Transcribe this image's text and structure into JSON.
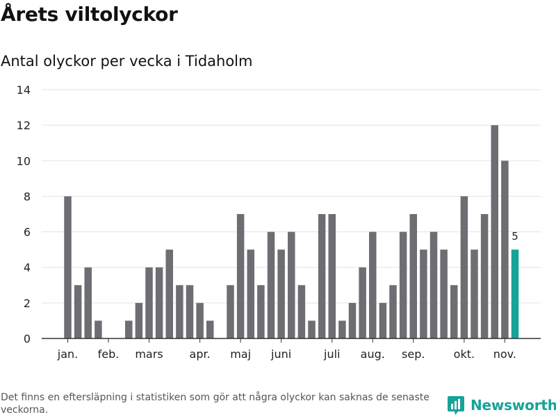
{
  "header": {
    "title": "Årets viltolyckor",
    "subtitle": "Antal olyckor per vecka i Tidaholm"
  },
  "footer": {
    "note": "Det finns en eftersläpning i statistiken som gör att några olyckor kan saknas de senaste veckorna.",
    "brand": "Newsworthy"
  },
  "colors": {
    "bar": "#6e6d73",
    "highlight": "#17a398",
    "grid": "#e3e3e3",
    "axis": "#333333",
    "brand": "#17a398"
  },
  "icons": {
    "logo": "newsworthy-bars-logo"
  },
  "chart_data": {
    "type": "bar",
    "ylim": [
      0,
      14
    ],
    "yticks": [
      0,
      2,
      4,
      6,
      8,
      10,
      12,
      14
    ],
    "grid": true,
    "values": [
      8,
      3,
      4,
      1,
      0,
      0,
      1,
      2,
      4,
      4,
      5,
      3,
      3,
      2,
      1,
      0,
      3,
      7,
      5,
      3,
      6,
      5,
      6,
      3,
      1,
      7,
      7,
      1,
      2,
      4,
      6,
      2,
      3,
      6,
      7,
      5,
      6,
      5,
      3,
      8,
      5,
      7,
      12,
      10,
      5
    ],
    "highlight_index": 44,
    "highlight_label": "5",
    "month_labels": [
      {
        "label": "jan.",
        "week": 1
      },
      {
        "label": "feb.",
        "week": 5
      },
      {
        "label": "mars",
        "week": 9
      },
      {
        "label": "apr.",
        "week": 14
      },
      {
        "label": "maj",
        "week": 18
      },
      {
        "label": "juni",
        "week": 22
      },
      {
        "label": "juli",
        "week": 27
      },
      {
        "label": "aug.",
        "week": 31
      },
      {
        "label": "sep.",
        "week": 35
      },
      {
        "label": "okt.",
        "week": 40
      },
      {
        "label": "nov.",
        "week": 44
      }
    ]
  }
}
